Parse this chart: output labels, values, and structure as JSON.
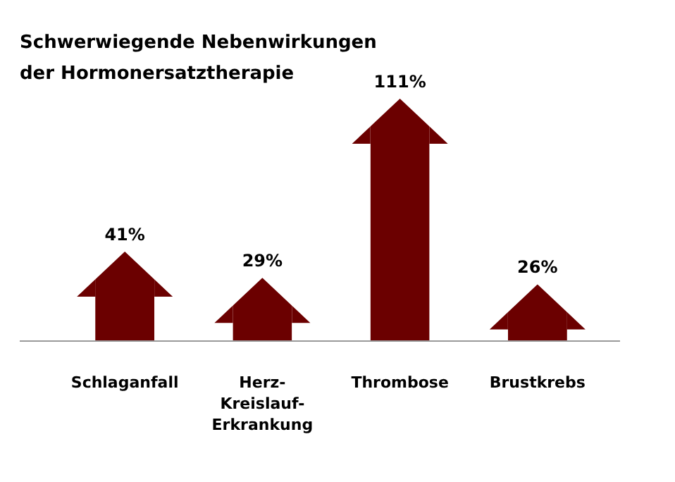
{
  "chart_data": {
    "type": "bar",
    "title": "Schwerwiegende Nebenwirkungen der Hormonersatztherapie",
    "categories": [
      "Schlaganfall",
      "Herz-Kreislauf-Erkrankung",
      "Thrombose",
      "Brustkrebs"
    ],
    "values": [
      41,
      29,
      111,
      26
    ],
    "value_labels": [
      "41%",
      "29%",
      "111%",
      "26%"
    ],
    "color": "#6b0000"
  }
}
